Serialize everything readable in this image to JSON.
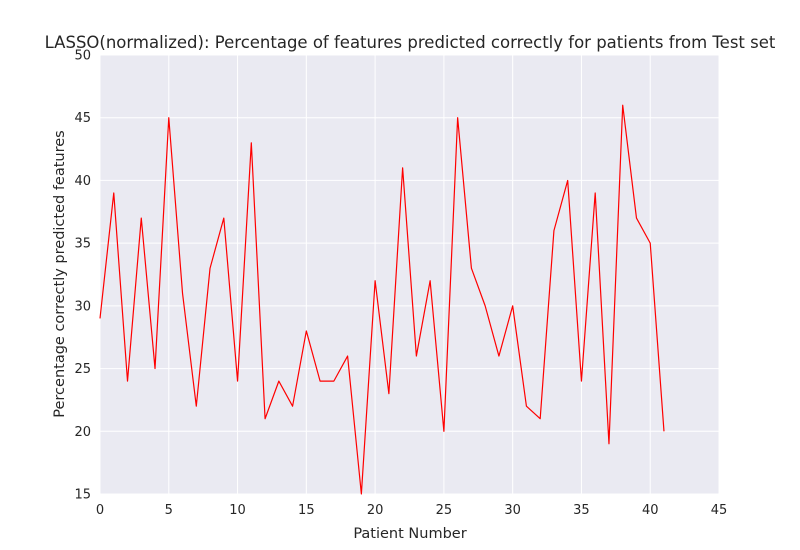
{
  "chart_data": {
    "type": "line",
    "title": "LASSO(normalized): Percentage of features predicted correctly for patients from Test set",
    "xlabel": "Patient Number",
    "ylabel": "Percentage correctly predicted features",
    "xlim": [
      0,
      45
    ],
    "ylim": [
      15,
      50
    ],
    "xticks": [
      0,
      5,
      10,
      15,
      20,
      25,
      30,
      35,
      40,
      45
    ],
    "yticks": [
      15,
      20,
      25,
      30,
      35,
      40,
      45,
      50
    ],
    "grid": true,
    "legend": "none",
    "line_color": "#ff0000",
    "background_color": "#eaeaf2",
    "grid_color": "#ffffff",
    "x": [
      0,
      1,
      2,
      3,
      4,
      5,
      6,
      7,
      8,
      9,
      10,
      11,
      12,
      13,
      14,
      15,
      16,
      17,
      18,
      19,
      20,
      21,
      22,
      23,
      24,
      25,
      26,
      27,
      28,
      29,
      30,
      31,
      32,
      33,
      34,
      35,
      36,
      37,
      38,
      39,
      40,
      41
    ],
    "values": [
      29,
      39,
      24,
      37,
      25,
      45,
      31,
      22,
      33,
      37,
      24,
      43,
      21,
      24,
      22,
      28,
      24,
      24,
      26,
      15,
      32,
      23,
      41,
      26,
      32,
      20,
      45,
      33,
      30,
      26,
      30,
      22,
      21,
      36,
      40,
      24,
      39,
      19,
      46,
      37,
      35,
      20
    ]
  }
}
